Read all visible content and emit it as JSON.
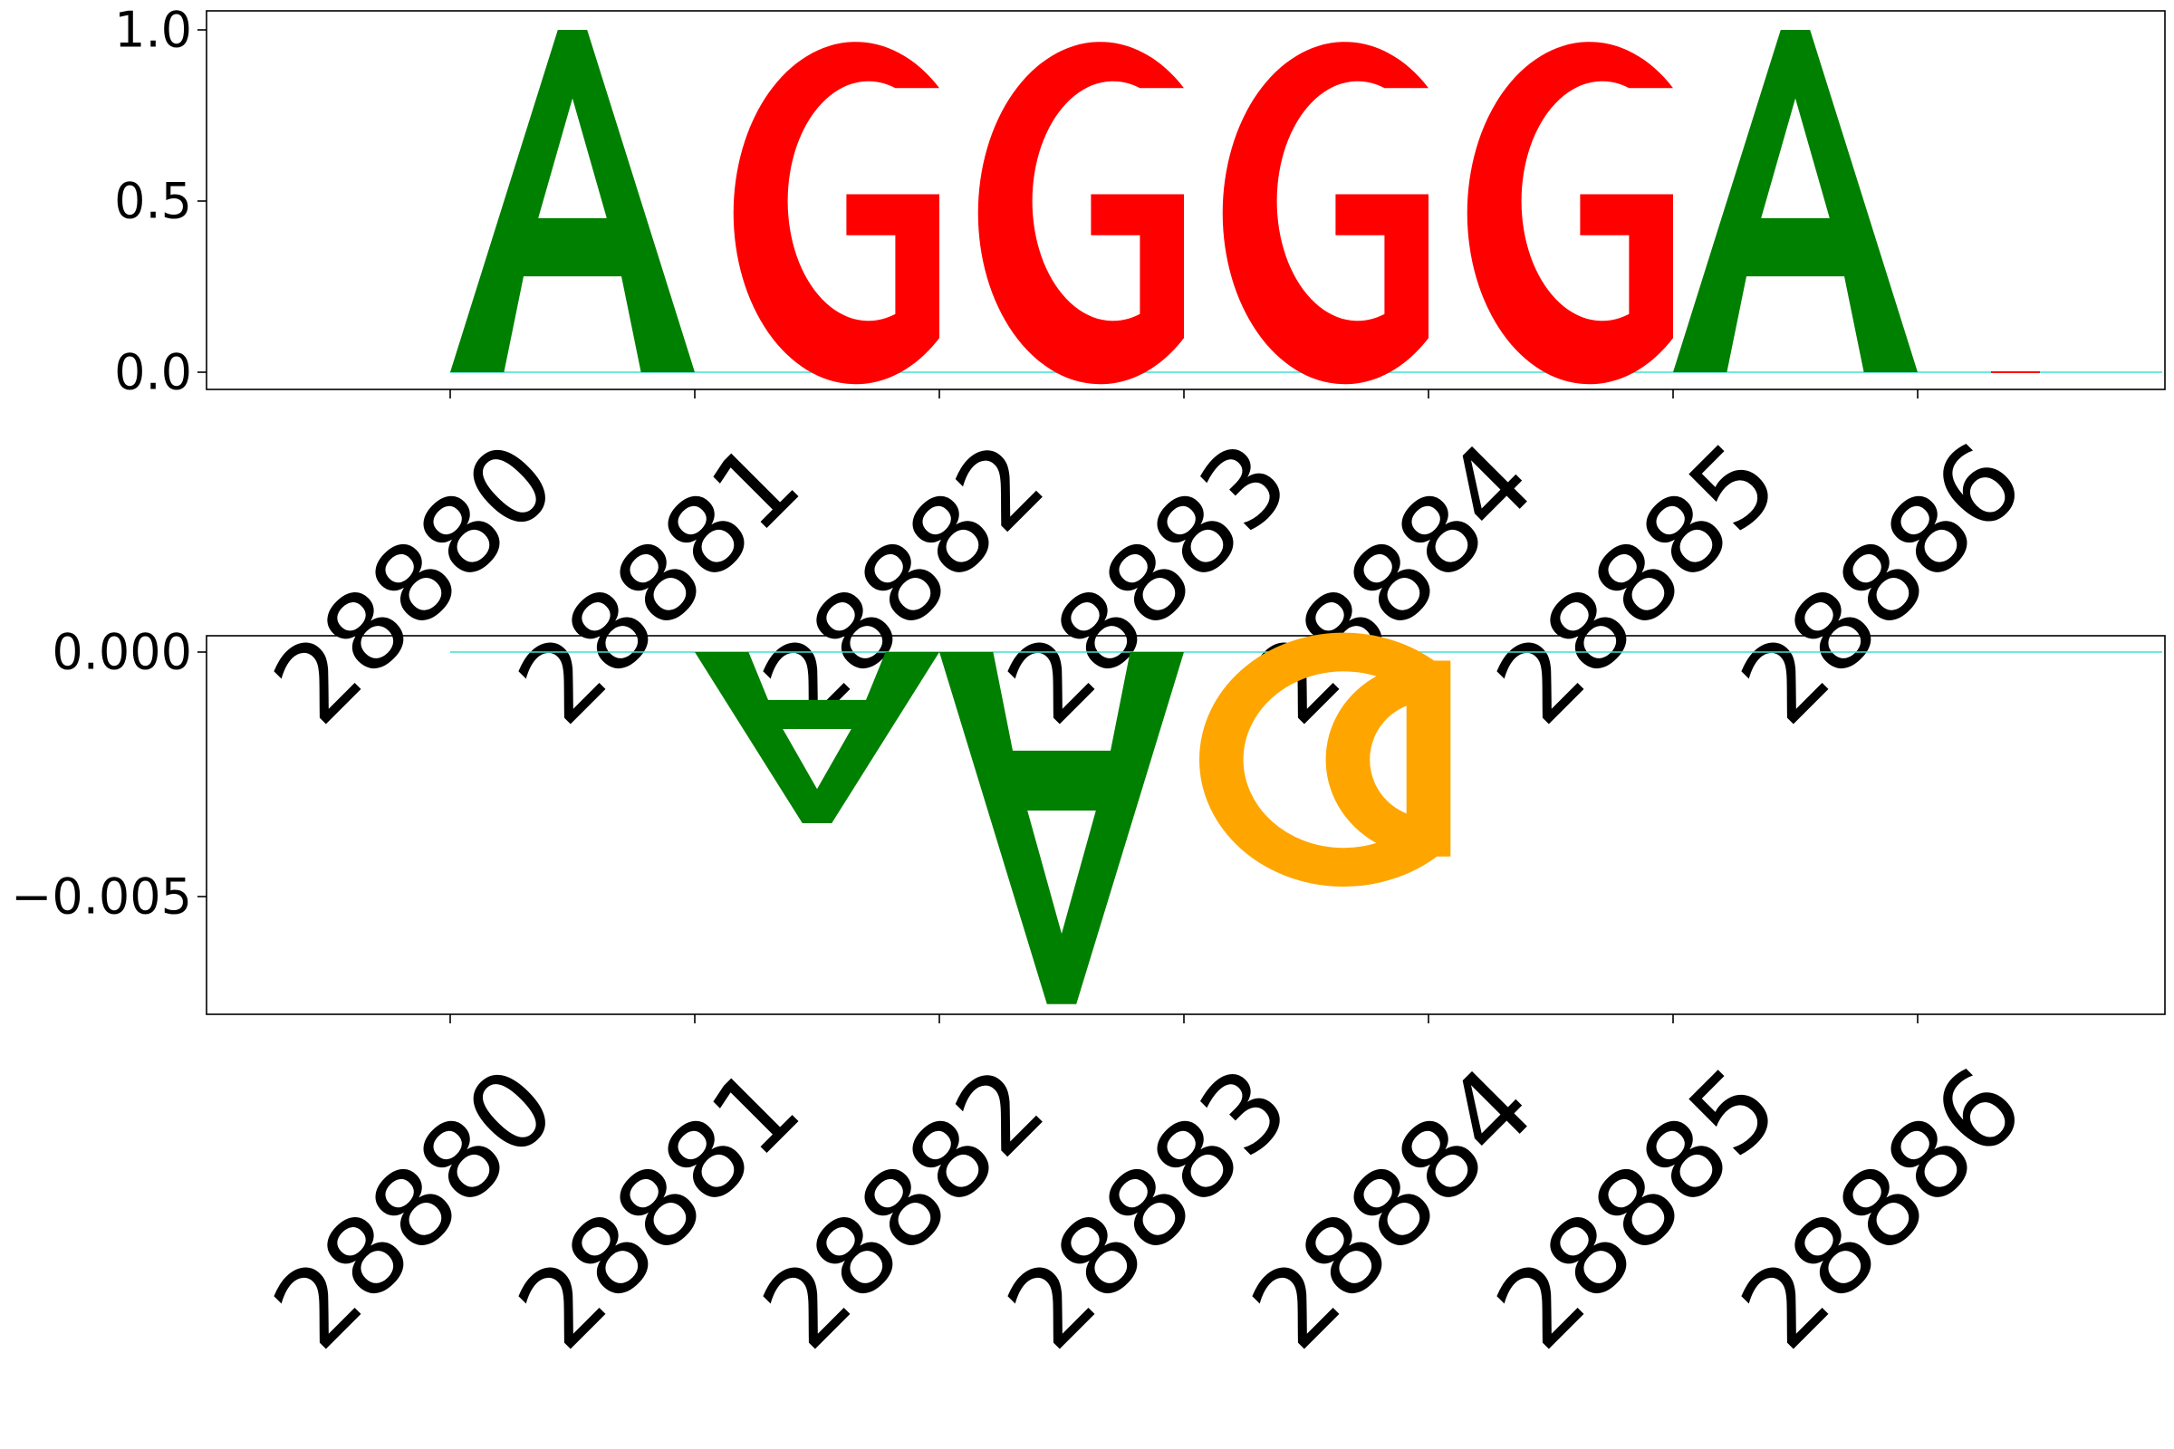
{
  "chart_data": [
    {
      "type": "sequence-logo",
      "title": "",
      "xlabel": "",
      "ylabel": "",
      "ylim": [
        -0.05,
        1.05
      ],
      "yticks": [
        {
          "value": 0.0,
          "label": "0.0"
        },
        {
          "value": 0.5,
          "label": "0.5"
        },
        {
          "value": 1.0,
          "label": "1.0"
        }
      ],
      "xticks": [
        "28880",
        "28881",
        "28882",
        "28883",
        "28884",
        "28885",
        "28886"
      ],
      "letters": [
        {
          "position": "28880",
          "base": "A",
          "value": 1.0
        },
        {
          "position": "28881",
          "base": "G",
          "value": 1.0
        },
        {
          "position": "28882",
          "base": "G",
          "value": 1.0
        },
        {
          "position": "28883",
          "base": "G",
          "value": 1.0
        },
        {
          "position": "28884",
          "base": "G",
          "value": 1.0
        },
        {
          "position": "28885",
          "base": "A",
          "value": 1.0
        },
        {
          "position": "28886",
          "base": "G",
          "value": 0.002
        }
      ]
    },
    {
      "type": "sequence-logo",
      "title": "",
      "xlabel": "",
      "ylabel": "",
      "ylim": [
        -0.0078,
        0.0003
      ],
      "yticks": [
        {
          "value": 0.0,
          "label": "0.000"
        },
        {
          "value": -0.005,
          "label": "−0.005"
        }
      ],
      "xticks": [
        "28880",
        "28881",
        "28882",
        "28883",
        "28884",
        "28885",
        "28886"
      ],
      "letters": [
        {
          "position": "28880",
          "base": "A",
          "value": 0.0
        },
        {
          "position": "28881",
          "base": "A",
          "value": -0.0035
        },
        {
          "position": "28882",
          "base": "A",
          "value": -0.0072
        },
        {
          "position": "28883",
          "base": "C",
          "value": -0.0044
        },
        {
          "position": "28884",
          "base": "A",
          "value": 0.0
        },
        {
          "position": "28885",
          "base": "A",
          "value": 0.0
        },
        {
          "position": "28886",
          "base": "G",
          "value": 0.0
        }
      ]
    }
  ],
  "colors": {
    "A": "#008000",
    "C": "#ffa500",
    "G": "#ff0000",
    "T": "#40e0d0",
    "axis": "#000000"
  }
}
